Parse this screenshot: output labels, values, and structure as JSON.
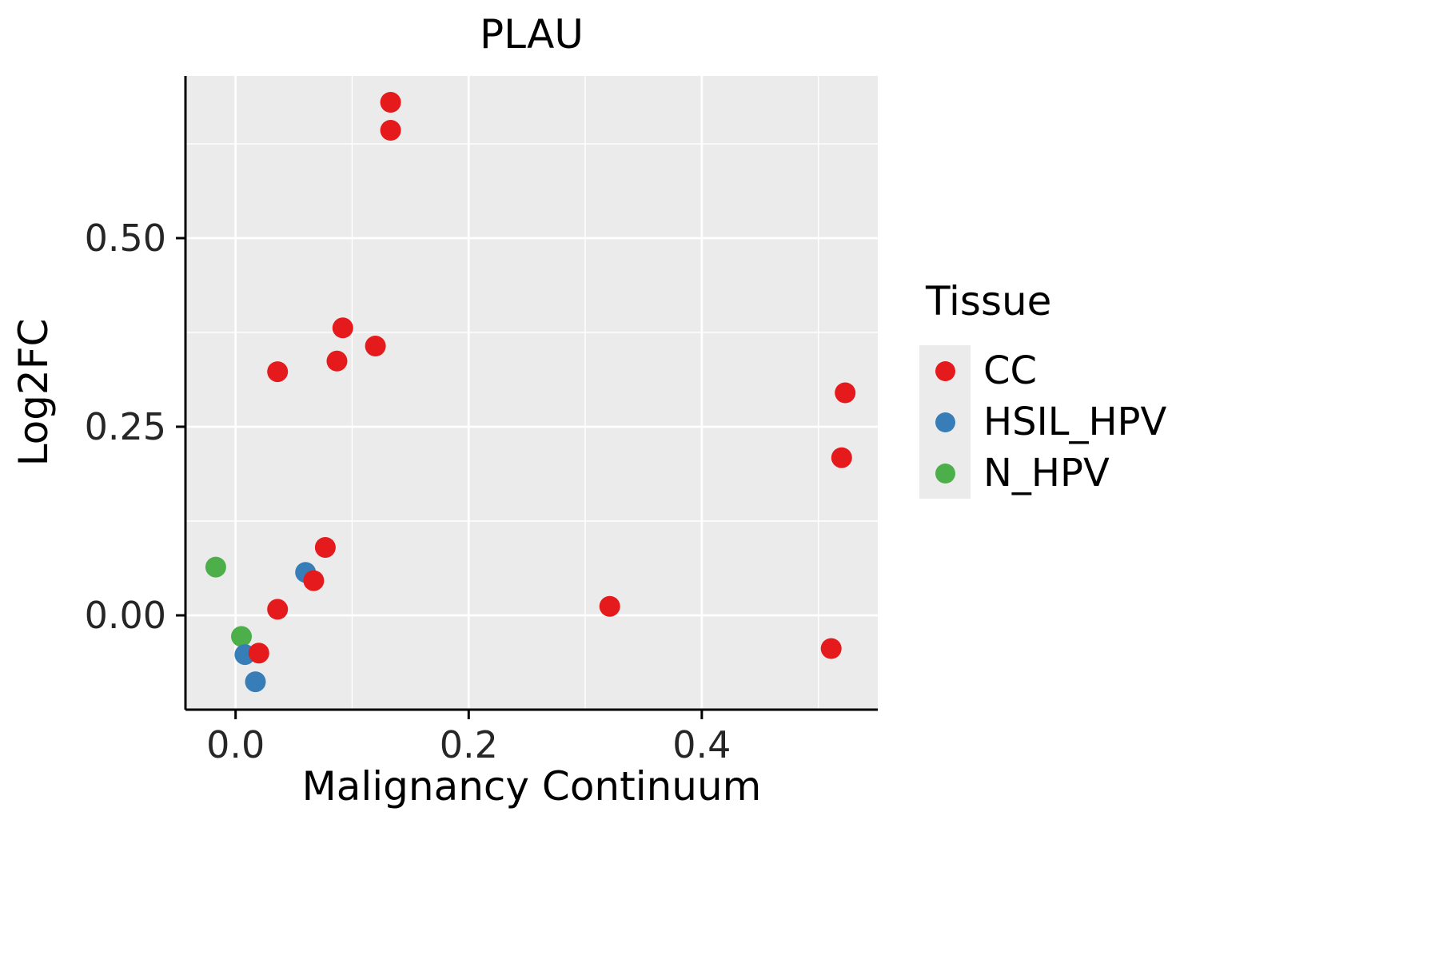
{
  "colors": {
    "background": "#ffffff",
    "panel": "#EBEBEB",
    "grid_major": "#FFFFFF",
    "grid_minor": "#FFFFFF",
    "axis": "#000000",
    "tick_text": "#262626"
  },
  "chart_data": {
    "type": "scatter",
    "title": "PLAU",
    "xlabel": "Malignancy Continuum",
    "ylabel": "Log2FC",
    "xlim": [
      -0.043,
      0.551
    ],
    "ylim": [
      -0.125,
      0.715
    ],
    "grid": true,
    "x_ticks": [
      {
        "value": 0.0,
        "label": "0.0"
      },
      {
        "value": 0.2,
        "label": "0.2"
      },
      {
        "value": 0.4,
        "label": "0.4"
      }
    ],
    "x_minor_ticks": [
      0.1,
      0.3,
      0.5
    ],
    "y_ticks": [
      {
        "value": 0.0,
        "label": "0.00"
      },
      {
        "value": 0.25,
        "label": "0.25"
      },
      {
        "value": 0.5,
        "label": "0.50"
      }
    ],
    "y_minor_ticks": [
      0.125,
      0.375,
      0.625
    ],
    "point_radius": 13,
    "legend": {
      "title": "Tissue",
      "position": "right"
    },
    "series": [
      {
        "name": "CC",
        "color": "#E41A1C",
        "points": [
          [
            0.133,
            0.68
          ],
          [
            0.133,
            0.643
          ],
          [
            0.092,
            0.381
          ],
          [
            0.12,
            0.357
          ],
          [
            0.087,
            0.337
          ],
          [
            0.036,
            0.323
          ],
          [
            0.523,
            0.295
          ],
          [
            0.52,
            0.209
          ],
          [
            0.077,
            0.09
          ],
          [
            0.067,
            0.046
          ],
          [
            0.036,
            0.008
          ],
          [
            0.321,
            0.012
          ],
          [
            0.02,
            -0.05
          ],
          [
            0.511,
            -0.044
          ]
        ]
      },
      {
        "name": "HSIL_HPV",
        "color": "#377EB8",
        "points": [
          [
            0.06,
            0.057
          ],
          [
            0.008,
            -0.052
          ],
          [
            0.017,
            -0.088
          ]
        ]
      },
      {
        "name": "N_HPV",
        "color": "#4DAF4A",
        "points": [
          [
            -0.017,
            0.064
          ],
          [
            0.005,
            -0.028
          ]
        ]
      }
    ]
  }
}
